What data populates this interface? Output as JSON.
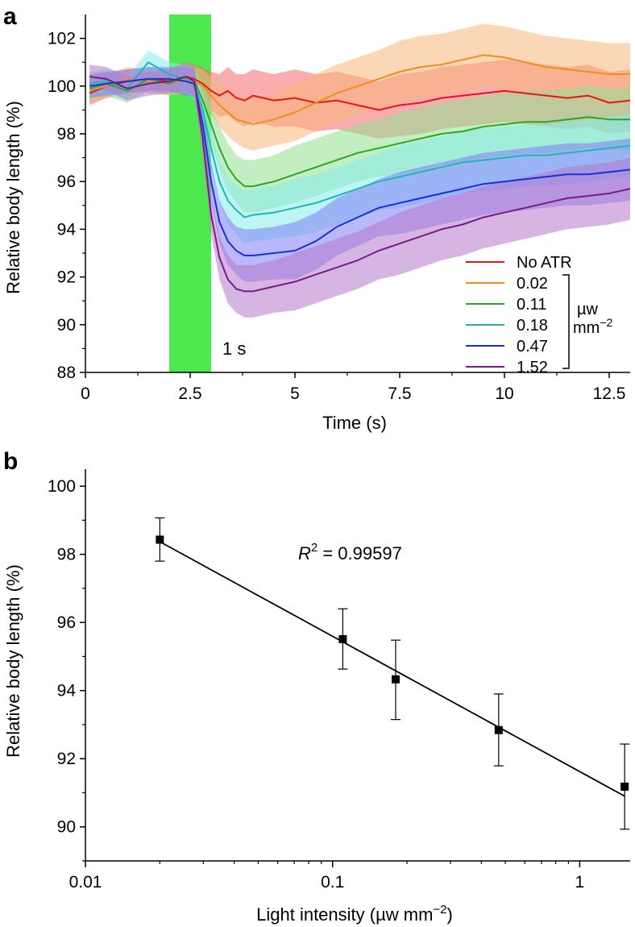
{
  "chart_data": [
    {
      "panel_label": "a",
      "type": "line",
      "xlabel": "Time (s)",
      "ylabel": "Relative body length (%)",
      "xlim": [
        0,
        13
      ],
      "ylim": [
        88,
        103
      ],
      "x_ticks": [
        0,
        2.5,
        5,
        7.5,
        10,
        12.5
      ],
      "x_tick_labels": [
        "0",
        "2.5",
        "5",
        "7.5",
        "10",
        "12.5"
      ],
      "y_ticks": [
        88,
        90,
        92,
        94,
        96,
        98,
        100,
        102
      ],
      "y_tick_labels": [
        "88",
        "90",
        "92",
        "94",
        "96",
        "98",
        "100",
        "102"
      ],
      "stimulus": {
        "start": 2,
        "end": 3,
        "label": "1 s",
        "color": "#4de84d"
      },
      "legend_unit_line1": "µw",
      "legend_unit_line2": "mm",
      "legend_unit_exp": "−2",
      "legend_placement": "bottom-right",
      "x": [
        0.1,
        0.5,
        1.0,
        1.5,
        2.0,
        2.4,
        2.6,
        2.8,
        3.0,
        3.2,
        3.4,
        3.6,
        3.8,
        4.0,
        4.5,
        5.0,
        5.5,
        6.0,
        6.5,
        7.0,
        7.5,
        8.0,
        8.5,
        9.0,
        9.5,
        10.0,
        10.5,
        11.0,
        11.5,
        12.0,
        12.5,
        13.0
      ],
      "series": [
        {
          "name": "No ATR",
          "color": "#e8141a",
          "band": "#f26c6c",
          "values": [
            99.7,
            100.0,
            100.2,
            100.3,
            100.2,
            100.4,
            100.3,
            100.1,
            99.8,
            99.6,
            99.8,
            99.5,
            99.4,
            99.6,
            99.4,
            99.5,
            99.3,
            99.4,
            99.2,
            99.0,
            99.2,
            99.3,
            99.5,
            99.6,
            99.7,
            99.8,
            99.7,
            99.6,
            99.5,
            99.6,
            99.3,
            99.4
          ],
          "sd": [
            0.5,
            0.5,
            0.5,
            0.5,
            0.5,
            0.6,
            0.6,
            0.7,
            0.8,
            0.9,
            1.0,
            1.0,
            1.1,
            1.1,
            1.1,
            1.2,
            1.2,
            1.2,
            1.2,
            1.2,
            1.3,
            1.3,
            1.3,
            1.3,
            1.3,
            1.3,
            1.3,
            1.3,
            1.3,
            1.3,
            1.3,
            1.3
          ]
        },
        {
          "name": "0.02",
          "color": "#f08c1e",
          "band": "#f7b77a",
          "values": [
            99.8,
            100.0,
            100.3,
            100.2,
            100.1,
            100.3,
            100.2,
            100.0,
            99.6,
            99.2,
            98.9,
            98.6,
            98.5,
            98.4,
            98.6,
            98.9,
            99.3,
            99.7,
            100.0,
            100.3,
            100.6,
            100.8,
            100.9,
            101.1,
            101.3,
            101.2,
            101.0,
            100.8,
            100.7,
            100.6,
            100.5,
            100.5
          ],
          "sd": [
            0.5,
            0.5,
            0.5,
            0.5,
            0.5,
            0.6,
            0.6,
            0.7,
            0.8,
            0.9,
            1.0,
            1.0,
            1.1,
            1.1,
            1.1,
            1.2,
            1.2,
            1.2,
            1.2,
            1.2,
            1.3,
            1.3,
            1.3,
            1.3,
            1.3,
            1.3,
            1.3,
            1.3,
            1.3,
            1.3,
            1.3,
            1.3
          ]
        },
        {
          "name": "0.11",
          "color": "#2aa82a",
          "band": "#8fe08f",
          "values": [
            99.9,
            100.1,
            99.8,
            100.3,
            100.1,
            100.4,
            100.2,
            99.4,
            98.4,
            97.4,
            96.6,
            96.1,
            95.8,
            95.8,
            96.0,
            96.3,
            96.6,
            96.9,
            97.2,
            97.4,
            97.6,
            97.8,
            98.0,
            98.1,
            98.3,
            98.4,
            98.5,
            98.5,
            98.6,
            98.7,
            98.6,
            98.6
          ],
          "sd": [
            0.5,
            0.5,
            0.5,
            0.5,
            0.5,
            0.6,
            0.6,
            0.7,
            0.8,
            0.9,
            1.0,
            1.0,
            1.1,
            1.1,
            1.1,
            1.2,
            1.2,
            1.2,
            1.2,
            1.2,
            1.3,
            1.3,
            1.3,
            1.3,
            1.3,
            1.3,
            1.3,
            1.3,
            1.3,
            1.3,
            1.3,
            1.3
          ]
        },
        {
          "name": "0.18",
          "color": "#1fb8b0",
          "band": "#86ecec",
          "values": [
            100.1,
            100.2,
            99.9,
            101.0,
            100.5,
            100.3,
            100.0,
            99.0,
            97.4,
            96.0,
            95.2,
            94.8,
            94.5,
            94.6,
            94.7,
            94.9,
            95.1,
            95.4,
            95.7,
            96.0,
            96.2,
            96.4,
            96.6,
            96.8,
            96.9,
            97.0,
            97.1,
            97.1,
            97.2,
            97.3,
            97.4,
            97.5
          ],
          "sd": [
            0.5,
            0.5,
            0.5,
            0.5,
            0.5,
            0.6,
            0.6,
            0.7,
            0.8,
            0.9,
            1.0,
            1.0,
            1.1,
            1.1,
            1.1,
            1.2,
            1.2,
            1.2,
            1.2,
            1.2,
            1.3,
            1.3,
            1.3,
            1.3,
            1.3,
            1.3,
            1.3,
            1.3,
            1.3,
            1.3,
            1.3,
            1.3
          ]
        },
        {
          "name": "0.47",
          "color": "#1a2ee0",
          "band": "#7d7ef5",
          "values": [
            100.0,
            100.1,
            100.2,
            100.3,
            100.3,
            100.2,
            100.1,
            98.4,
            96.0,
            94.3,
            93.5,
            93.1,
            92.9,
            92.9,
            93.0,
            93.1,
            93.5,
            94.1,
            94.5,
            94.9,
            95.1,
            95.3,
            95.5,
            95.7,
            95.9,
            96.0,
            96.1,
            96.2,
            96.3,
            96.3,
            96.4,
            96.5
          ],
          "sd": [
            0.5,
            0.5,
            0.5,
            0.5,
            0.5,
            0.6,
            0.6,
            0.7,
            0.8,
            0.9,
            1.0,
            1.0,
            1.1,
            1.1,
            1.1,
            1.2,
            1.2,
            1.2,
            1.2,
            1.2,
            1.3,
            1.3,
            1.3,
            1.3,
            1.3,
            1.3,
            1.3,
            1.3,
            1.3,
            1.3,
            1.3,
            1.3
          ]
        },
        {
          "name": "1.52",
          "color": "#7a1a86",
          "band": "#b779cc",
          "values": [
            100.4,
            100.3,
            99.9,
            100.1,
            100.2,
            100.4,
            100.2,
            97.8,
            94.6,
            92.8,
            91.9,
            91.5,
            91.4,
            91.4,
            91.6,
            91.8,
            92.1,
            92.4,
            92.7,
            93.1,
            93.4,
            93.7,
            94.0,
            94.2,
            94.5,
            94.7,
            94.9,
            95.1,
            95.3,
            95.4,
            95.5,
            95.7
          ],
          "sd": [
            0.5,
            0.5,
            0.5,
            0.5,
            0.5,
            0.6,
            0.6,
            0.7,
            0.8,
            0.9,
            1.0,
            1.0,
            1.1,
            1.1,
            1.1,
            1.2,
            1.2,
            1.2,
            1.2,
            1.2,
            1.3,
            1.3,
            1.3,
            1.3,
            1.3,
            1.3,
            1.3,
            1.3,
            1.3,
            1.3,
            1.3,
            1.3
          ]
        }
      ]
    },
    {
      "panel_label": "b",
      "type": "scatter",
      "xlabel": "Light intensity (µw mm",
      "xlabel_exp": "−2",
      "xlabel_close": ")",
      "ylabel": "Relative body length (%)",
      "x_scale": "log",
      "xlim": [
        0.01,
        1.6
      ],
      "ylim": [
        89,
        100.5
      ],
      "x_ticks": [
        0.01,
        0.1,
        1
      ],
      "x_tick_labels": [
        "0.01",
        "0.1",
        "1"
      ],
      "y_ticks": [
        90,
        92,
        94,
        96,
        98,
        100
      ],
      "y_tick_labels": [
        "90",
        "92",
        "94",
        "96",
        "98",
        "100"
      ],
      "points": [
        {
          "x": 0.02,
          "y": 98.43,
          "err_low": 97.8,
          "err_high": 99.07
        },
        {
          "x": 0.11,
          "y": 95.51,
          "err_low": 94.63,
          "err_high": 96.4
        },
        {
          "x": 0.18,
          "y": 94.33,
          "err_low": 93.15,
          "err_high": 95.48
        },
        {
          "x": 0.47,
          "y": 92.84,
          "err_low": 91.79,
          "err_high": 93.9
        },
        {
          "x": 1.52,
          "y": 91.18,
          "err_low": 89.93,
          "err_high": 92.43
        }
      ],
      "fit_line": {
        "x": [
          0.02,
          1.52
        ],
        "y": [
          98.37,
          90.9
        ]
      },
      "annotation_base": "R",
      "annotation_exp": "2",
      "annotation_rest": " = 0.99597"
    }
  ]
}
